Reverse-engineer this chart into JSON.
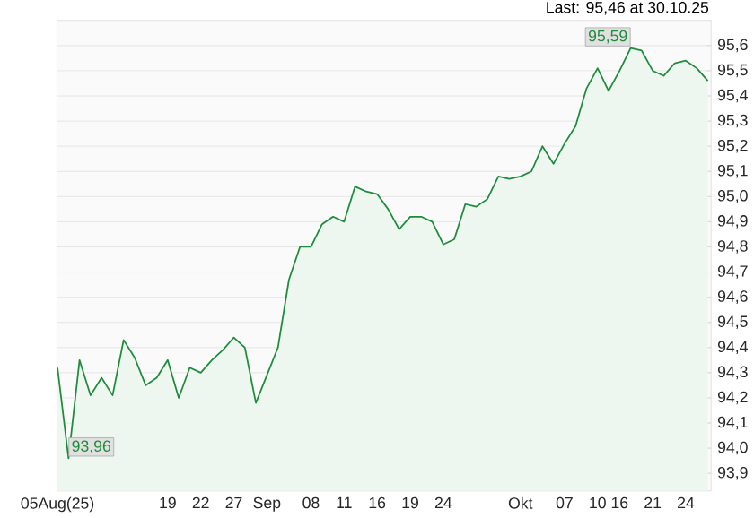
{
  "chart_data": {
    "type": "area",
    "categories": [
      "05Aug(25)",
      null,
      null,
      null,
      null,
      null,
      null,
      null,
      null,
      null,
      "19",
      null,
      null,
      "22",
      null,
      null,
      "27",
      null,
      null,
      "Sep",
      null,
      null,
      null,
      "08",
      null,
      null,
      "11",
      null,
      null,
      "16",
      null,
      null,
      "19",
      null,
      null,
      "24",
      null,
      null,
      null,
      null,
      null,
      null,
      "Okt",
      null,
      null,
      null,
      "07",
      null,
      null,
      "10",
      null,
      "16",
      null,
      null,
      "21",
      null,
      null,
      "24",
      null,
      null
    ],
    "series": [
      {
        "color": "#1e8c3c",
        "values": [
          94.32,
          93.96,
          94.35,
          94.21,
          94.28,
          94.21,
          94.43,
          94.36,
          94.25,
          94.28,
          94.35,
          94.2,
          94.32,
          94.3,
          94.35,
          94.39,
          94.44,
          94.4,
          94.18,
          94.29,
          94.4,
          94.67,
          94.8,
          94.8,
          94.89,
          94.92,
          94.9,
          95.04,
          95.02,
          95.01,
          94.95,
          94.87,
          94.92,
          94.92,
          94.9,
          94.81,
          94.83,
          94.97,
          94.96,
          94.99,
          95.08,
          95.07,
          95.08,
          95.1,
          95.2,
          95.13,
          95.21,
          95.28,
          95.43,
          95.51,
          95.42,
          95.5,
          95.59,
          95.58,
          95.5,
          95.48,
          95.53,
          95.54,
          95.51,
          95.46
        ]
      }
    ],
    "ylim": [
      93.83,
      95.7
    ],
    "yticks": [
      {
        "value": 93.9,
        "label": "93,9"
      },
      {
        "value": 94.0,
        "label": "94,0"
      },
      {
        "value": 94.1,
        "label": "94,1"
      },
      {
        "value": 94.2,
        "label": "94,2"
      },
      {
        "value": 94.3,
        "label": "94,3"
      },
      {
        "value": 94.4,
        "label": "94,4"
      },
      {
        "value": 94.5,
        "label": "94,5"
      },
      {
        "value": 94.6,
        "label": "94,6"
      },
      {
        "value": 94.7,
        "label": "94,7"
      },
      {
        "value": 94.8,
        "label": "94,8"
      },
      {
        "value": 94.9,
        "label": "94,9"
      },
      {
        "value": 95.0,
        "label": "95,0"
      },
      {
        "value": 95.1,
        "label": "95,1"
      },
      {
        "value": 95.2,
        "label": "95,2"
      },
      {
        "value": 95.3,
        "label": "95,3"
      },
      {
        "value": 95.4,
        "label": "95,4"
      },
      {
        "value": 95.5,
        "label": "95,5"
      },
      {
        "value": 95.6,
        "label": "95,6"
      }
    ],
    "grid": "y",
    "annotations": [
      "Last: 95,46 at 30.10.25",
      "95,59",
      "93,96"
    ]
  }
}
